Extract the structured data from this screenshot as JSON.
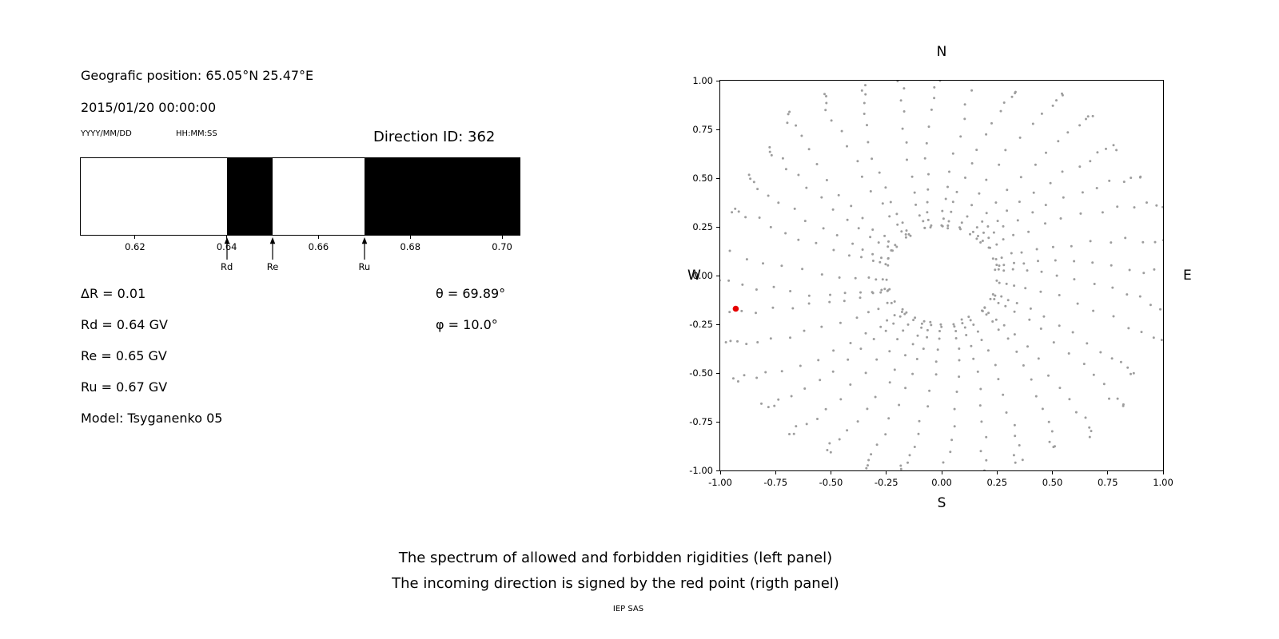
{
  "figure": {
    "background": "#ffffff"
  },
  "left_panel": {
    "geo_position": "Geografic position: 65.05°N 25.47°E",
    "datetime_value": "2015/01/20 00:00:00",
    "date_format_label": "YYYY/MM/DD",
    "time_format_label": "HH:MM:SS",
    "direction_id_label": "Direction ID: 362",
    "info_lines": [
      "ΔR = 0.01",
      "Rd = 0.64 GV",
      "Re = 0.65 GV",
      "Ru = 0.67 GV",
      "Model: Tsyganenko 05"
    ],
    "angle_lines": [
      "θ = 69.89°",
      "φ = 10.0°"
    ]
  },
  "caption": {
    "line1": "The spectrum of allowed and forbidden rigidities (left panel)",
    "line2": "The incoming direction is signed by the red point (rigth panel)",
    "footer": "IEP SAS"
  },
  "chart_data": [
    {
      "type": "bar",
      "name": "rigidity-spectrum",
      "title": "",
      "xlabel": "",
      "ylabel": "",
      "x_range": [
        0.608,
        0.704
      ],
      "x_ticks": [
        {
          "value": 0.62,
          "label": "0.62"
        },
        {
          "value": 0.64,
          "label": "0.64"
        },
        {
          "value": 0.66,
          "label": "0.66"
        },
        {
          "value": 0.68,
          "label": "0.68"
        },
        {
          "value": 0.7,
          "label": "0.70"
        }
      ],
      "allowed_color": "#ffffff",
      "forbidden_color": "#000000",
      "forbidden_intervals": [
        [
          0.64,
          0.65
        ],
        [
          0.67,
          0.704
        ]
      ],
      "markers": [
        {
          "label": "Rd",
          "x": 0.64
        },
        {
          "label": "Re",
          "x": 0.65
        },
        {
          "label": "Ru",
          "x": 0.67
        }
      ],
      "delta_R_GV": 0.01,
      "Rd_GV": 0.64,
      "Re_GV": 0.65,
      "Ru_GV": 0.67,
      "theta_deg": 69.89,
      "phi_deg": 10.0,
      "model": "Tsyganenko 05",
      "direction_id": 362
    },
    {
      "type": "scatter",
      "name": "incoming-directions-map",
      "title": "",
      "xlabel": "",
      "ylabel": "",
      "xlim": [
        -1,
        1
      ],
      "ylim": [
        -1,
        1
      ],
      "grid": false,
      "x_ticks": [
        {
          "value": -1.0,
          "label": "-1.00"
        },
        {
          "value": -0.75,
          "label": "-0.75"
        },
        {
          "value": -0.5,
          "label": "-0.50"
        },
        {
          "value": -0.25,
          "label": "-0.25"
        },
        {
          "value": 0.0,
          "label": "0.00"
        },
        {
          "value": 0.25,
          "label": "0.25"
        },
        {
          "value": 0.5,
          "label": "0.50"
        },
        {
          "value": 0.75,
          "label": "0.75"
        },
        {
          "value": 1.0,
          "label": "1.00"
        }
      ],
      "y_ticks": [
        {
          "value": -1.0,
          "label": "-1.00"
        },
        {
          "value": -0.75,
          "label": "-0.75"
        },
        {
          "value": -0.5,
          "label": "-0.50"
        },
        {
          "value": -0.25,
          "label": "-0.25"
        },
        {
          "value": 0.0,
          "label": "0.00"
        },
        {
          "value": 0.25,
          "label": "0.25"
        },
        {
          "value": 0.5,
          "label": "0.50"
        },
        {
          "value": 0.75,
          "label": "0.75"
        },
        {
          "value": 1.0,
          "label": "1.00"
        }
      ],
      "compass": {
        "north": "N",
        "east": "E",
        "south": "S",
        "west": "W"
      },
      "spokes": {
        "count": 36,
        "angle_step_deg": 10,
        "points_per_spoke": 16,
        "r_inner": 0.25,
        "r_outer_base": 1.0,
        "r_outer_jitter": 0.1,
        "inward_angle_drift_deg": 12,
        "dot_color": "#8c8c8c",
        "dot_opacity": 0.85,
        "dot_radius_px": 1.5
      },
      "incoming_direction": {
        "x": -0.93,
        "y": -0.17,
        "color": "#e60000",
        "radius_px": 3.8,
        "theta_deg": 69.89,
        "phi_deg": 10.0
      }
    }
  ]
}
